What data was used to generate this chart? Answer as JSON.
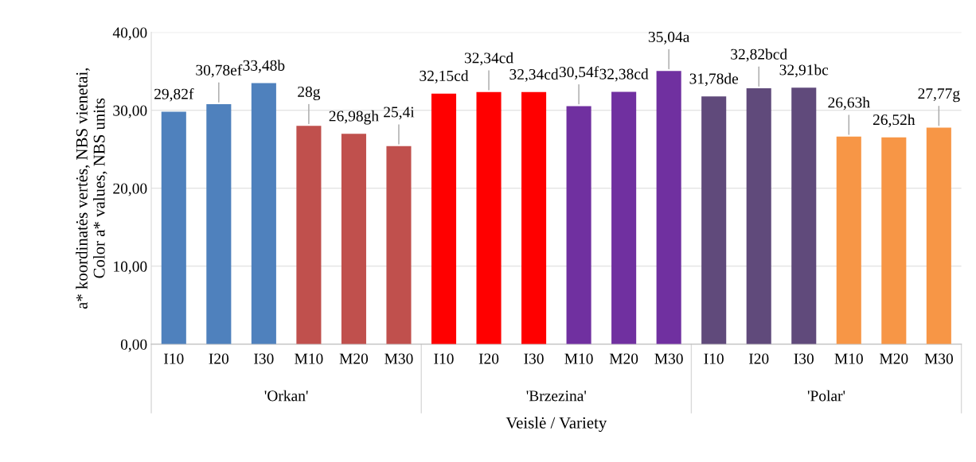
{
  "chart_data": {
    "type": "bar",
    "categories": [
      "I10",
      "I20",
      "I30",
      "M10",
      "M20",
      "M30",
      "I10",
      "I20",
      "I30",
      "M10",
      "M20",
      "M30",
      "I10",
      "I20",
      "I30",
      "M10",
      "M20",
      "M30"
    ],
    "values": [
      29.82,
      30.78,
      33.48,
      28,
      26.98,
      25.4,
      32.15,
      32.34,
      32.34,
      30.54,
      32.38,
      35.04,
      31.78,
      32.82,
      32.91,
      26.63,
      26.52,
      27.77
    ],
    "colors": [
      "#4f81bd",
      "#4f81bd",
      "#4f81bd",
      "#c0504d",
      "#c0504d",
      "#c0504d",
      "#ff0000",
      "#ff0000",
      "#ff0000",
      "#7030a0",
      "#7030a0",
      "#7030a0",
      "#604a7b",
      "#604a7b",
      "#604a7b",
      "#f79646",
      "#f79646",
      "#f79646"
    ],
    "value_labels": [
      "29,82f",
      "30,78ef",
      "33,48b",
      "28g",
      "26,98gh",
      "25,4i",
      "32,15cd",
      "32,34cd",
      "32,34cd",
      "30,54f",
      "32,38cd",
      "35,04a",
      "31,78de",
      "32,82bcd",
      "32,91bc",
      "26,63h",
      "26,52h",
      "27,77g"
    ],
    "annotations": [
      "'Orkan'",
      "'Brzezina'",
      "'Polar'"
    ],
    "xlabel": "Veislė / Variety",
    "ylabel": "a* koordinatės vertės, NBS vienetai,\nColor a* values, NBS units",
    "ylim": [
      0,
      40
    ],
    "yticks": [
      {
        "value": 0,
        "label": "0,00"
      },
      {
        "value": 10,
        "label": "10,00"
      },
      {
        "value": 20,
        "label": "20,00"
      },
      {
        "value": 30,
        "label": "30,00"
      },
      {
        "value": 40,
        "label": "40,00"
      }
    ],
    "grid": "y",
    "legend": false
  }
}
